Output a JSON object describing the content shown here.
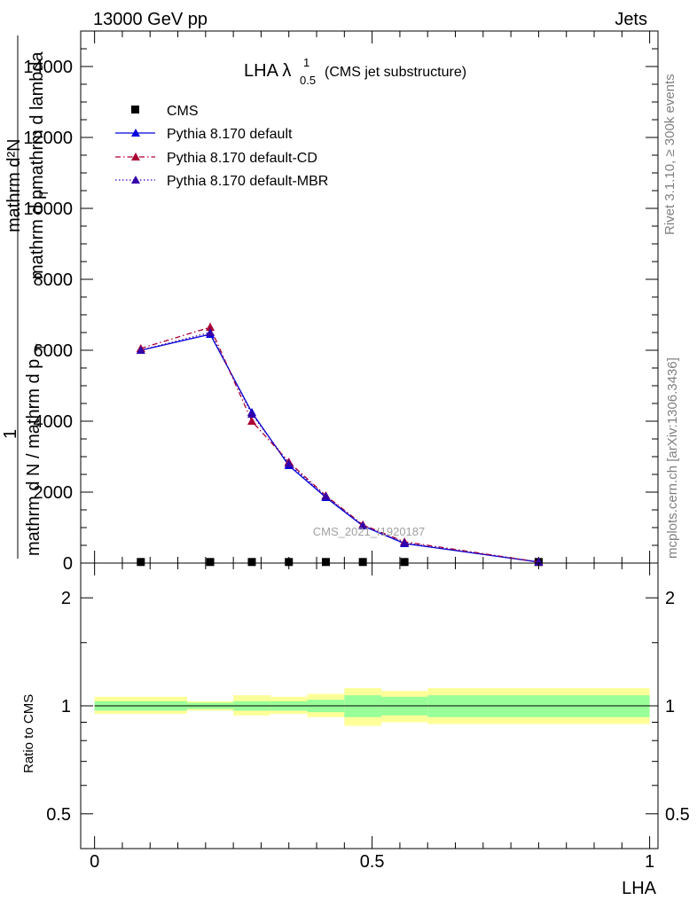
{
  "header": {
    "energy_label": "13000 GeV pp",
    "category_label": "Jets"
  },
  "side_labels": {
    "rivet": "Rivet 3.1.10, ≥ 300k events",
    "site": "mcplots.cern.ch [arXiv:1306.3436]"
  },
  "watermark": "CMS_2021_I1920187",
  "colors": {
    "cms": "#000000",
    "default": "#0000dd",
    "default_cd": "#aa0033",
    "default_mbr": "#3300aa",
    "band_inner": "#99ff99",
    "band_outer": "#ffff99"
  },
  "chart_data": [
    {
      "type": "line",
      "title_main": "LHA λ",
      "title_sup": "1",
      "title_sub": "0.5",
      "title_note": "(CMS jet substructure)",
      "ylabel_top": "mathrm d²N",
      "ylabel_top2": "mathrm d p",
      "ylabel_top2_sub": "T",
      "ylabel_top3": " mathrm d lambda",
      "ylabel_one": "1",
      "ylabel_bottom": "mathrm d N / mathrm d p",
      "ylabel_bottom_sub": "T",
      "ylim": [
        0,
        15000
      ],
      "xlim": [
        -0.025,
        1.015
      ],
      "yticks": [
        0,
        2000,
        4000,
        6000,
        8000,
        10000,
        12000,
        14000
      ],
      "ytick_labels": [
        "0",
        "2000",
        "4000",
        "6000",
        "8000",
        "10000",
        "12000",
        "14000"
      ],
      "legend_position": "top-left",
      "series": [
        {
          "name": "CMS",
          "style": "data",
          "x": [
            0.0833,
            0.2083,
            0.2833,
            0.35,
            0.4167,
            0.4833,
            0.5583,
            0.8
          ],
          "y": [
            30,
            30,
            30,
            30,
            30,
            30,
            30,
            30
          ]
        },
        {
          "name": "Pythia 8.170 default",
          "style": "solid",
          "x": [
            0.0833,
            0.2083,
            0.2833,
            0.35,
            0.4167,
            0.4833,
            0.5583,
            0.8
          ],
          "y": [
            6000,
            6450,
            4250,
            2750,
            1850,
            1050,
            550,
            30
          ],
          "err": [
            60,
            80,
            90,
            70,
            50,
            40,
            30,
            10
          ]
        },
        {
          "name": "Pythia 8.170 default-CD",
          "style": "dashdot",
          "x": [
            0.0833,
            0.2083,
            0.2833,
            0.35,
            0.4167,
            0.4833,
            0.5583,
            0.8
          ],
          "y": [
            6050,
            6650,
            4000,
            2850,
            1900,
            1080,
            600,
            30
          ],
          "err": [
            80,
            120,
            90,
            80,
            60,
            40,
            40,
            10
          ]
        },
        {
          "name": "Pythia 8.170 default-MBR",
          "style": "dotted",
          "x": [
            0.0833,
            0.2083,
            0.2833,
            0.35,
            0.4167,
            0.4833,
            0.5583,
            0.8
          ],
          "y": [
            6000,
            6500,
            4200,
            2800,
            1880,
            1060,
            570,
            30
          ],
          "err": [
            60,
            80,
            90,
            70,
            50,
            40,
            30,
            10
          ]
        }
      ]
    },
    {
      "type": "area",
      "ylabel": "Ratio to CMS",
      "xlabel": "LHA",
      "ylim": [
        0.4,
        2.5
      ],
      "xlim": [
        -0.025,
        1.015
      ],
      "log_y": true,
      "yticks": [
        0.5,
        1,
        2
      ],
      "ytick_labels": [
        "0.5",
        "1",
        "2"
      ],
      "xticks": [
        0,
        0.5,
        1
      ],
      "xtick_labels": [
        "0",
        "0.5",
        "1"
      ],
      "reference_line": 1,
      "bins": [
        {
          "lo": 0.0,
          "hi": 0.1667,
          "inner": [
            0.97,
            1.03
          ],
          "outer": [
            0.95,
            1.06
          ]
        },
        {
          "lo": 0.1667,
          "hi": 0.25,
          "inner": [
            0.98,
            1.02
          ],
          "outer": [
            0.97,
            1.03
          ]
        },
        {
          "lo": 0.25,
          "hi": 0.3167,
          "inner": [
            0.97,
            1.03
          ],
          "outer": [
            0.94,
            1.07
          ]
        },
        {
          "lo": 0.3167,
          "hi": 0.3833,
          "inner": [
            0.97,
            1.03
          ],
          "outer": [
            0.95,
            1.06
          ]
        },
        {
          "lo": 0.3833,
          "hi": 0.45,
          "inner": [
            0.96,
            1.04
          ],
          "outer": [
            0.93,
            1.08
          ]
        },
        {
          "lo": 0.45,
          "hi": 0.5167,
          "inner": [
            0.93,
            1.07
          ],
          "outer": [
            0.88,
            1.12
          ]
        },
        {
          "lo": 0.5167,
          "hi": 0.6,
          "inner": [
            0.94,
            1.06
          ],
          "outer": [
            0.9,
            1.1
          ]
        },
        {
          "lo": 0.6,
          "hi": 1.0,
          "inner": [
            0.93,
            1.07
          ],
          "outer": [
            0.89,
            1.12
          ]
        }
      ]
    }
  ]
}
